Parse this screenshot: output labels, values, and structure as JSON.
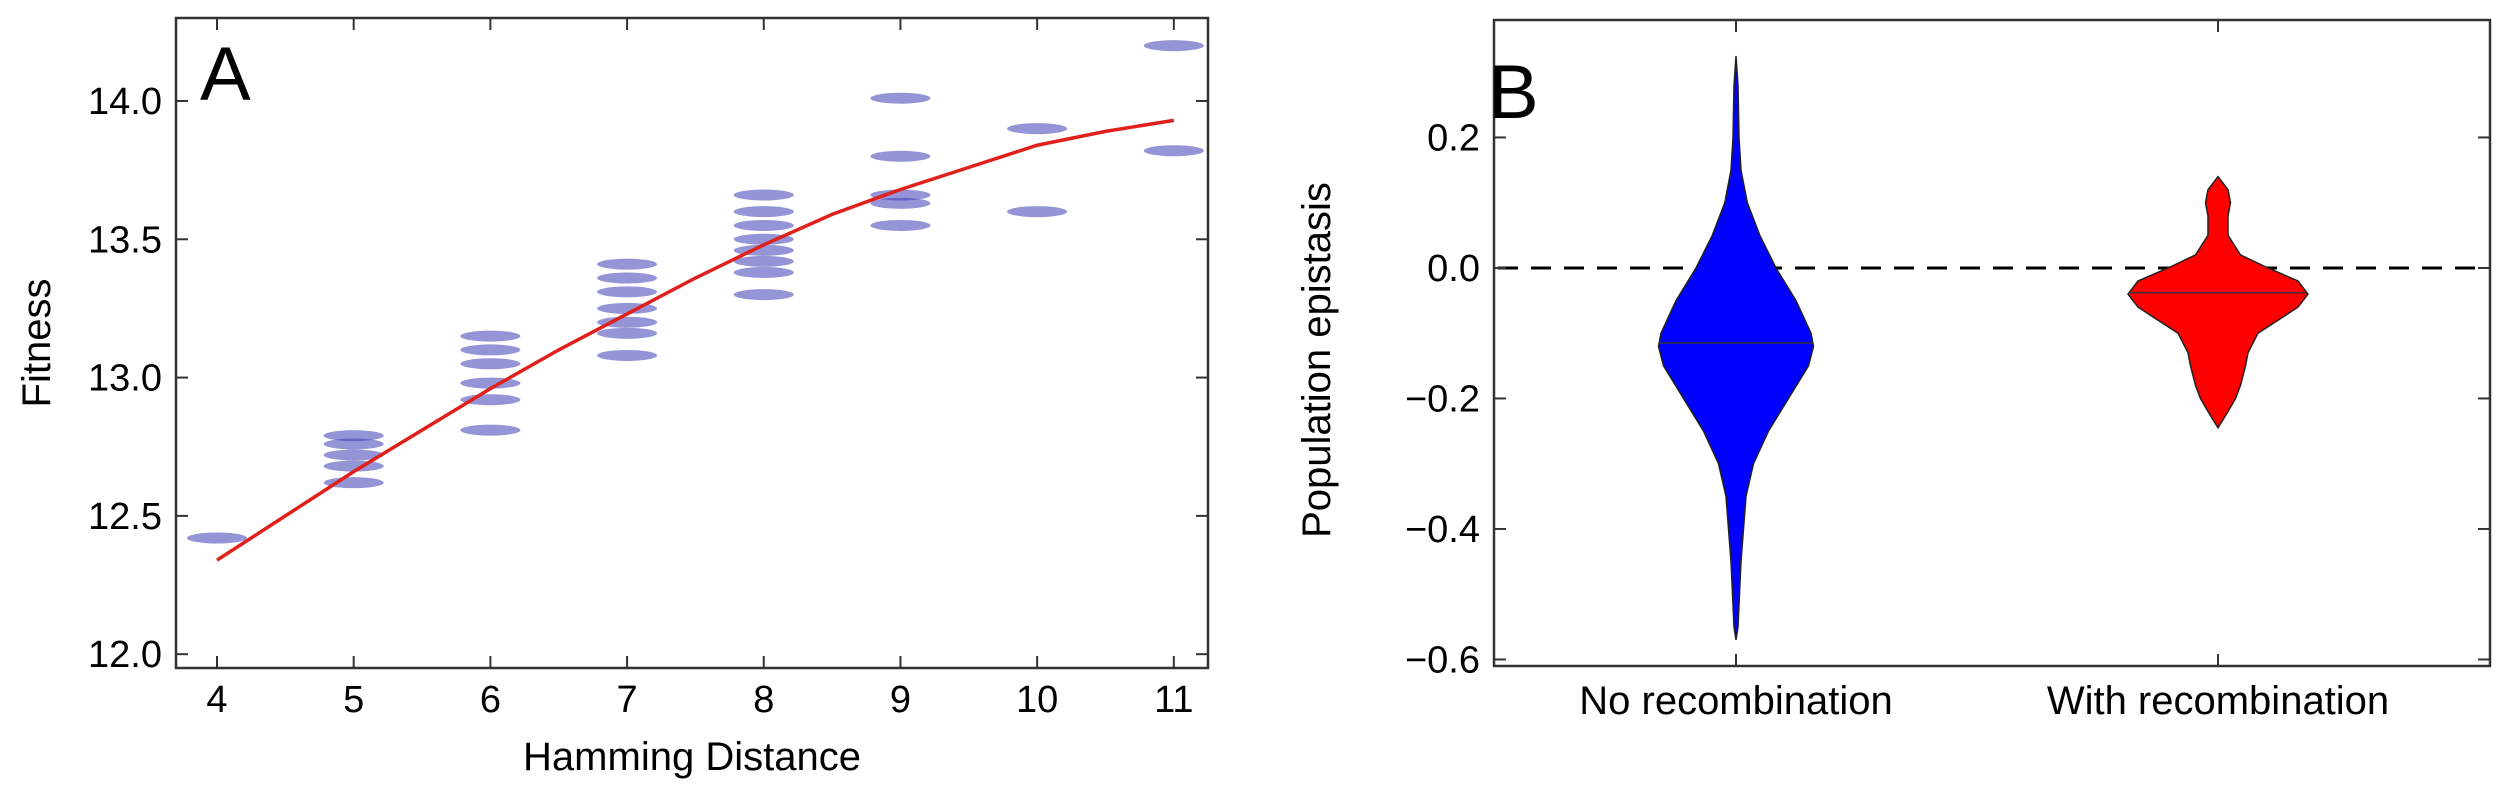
{
  "chart_data": [
    {
      "panel": "A",
      "type": "scatter",
      "xlabel": "Hamming Distance",
      "ylabel": "Fitness",
      "xlim": [
        3.7,
        11.25
      ],
      "ylim": [
        11.95,
        14.3
      ],
      "xticks": [
        "4",
        "5",
        "6",
        "7",
        "8",
        "9",
        "10",
        "11"
      ],
      "yticks": [
        "12.0",
        "12.5",
        "13.0",
        "13.5",
        "14.0"
      ],
      "grid": false,
      "point_color": "#3c3cb4",
      "clusters": [
        {
          "x": 4,
          "values": [
            12.42
          ]
        },
        {
          "x": 5,
          "values": [
            12.62,
            12.68,
            12.72,
            12.76,
            12.79
          ]
        },
        {
          "x": 6,
          "values": [
            12.81,
            12.92,
            12.98,
            13.05,
            13.1,
            13.15
          ]
        },
        {
          "x": 7,
          "values": [
            13.08,
            13.16,
            13.2,
            13.25,
            13.31,
            13.36,
            13.41
          ]
        },
        {
          "x": 8,
          "values": [
            13.3,
            13.38,
            13.42,
            13.46,
            13.5,
            13.55,
            13.6,
            13.66
          ]
        },
        {
          "x": 9,
          "values": [
            13.55,
            13.63,
            13.66,
            13.8,
            14.01
          ]
        },
        {
          "x": 10,
          "values": [
            13.6,
            13.9
          ]
        },
        {
          "x": 11,
          "values": [
            13.82,
            14.2
          ]
        }
      ],
      "fit_curve": {
        "name": "",
        "color": "#e0201b",
        "x": [
          4,
          4.5,
          5,
          5.5,
          6,
          6.5,
          7,
          7.5,
          8,
          8.5,
          9,
          9.5,
          10,
          10.5,
          11
        ],
        "y": [
          12.34,
          12.5,
          12.66,
          12.81,
          12.96,
          13.1,
          13.23,
          13.36,
          13.48,
          13.59,
          13.68,
          13.76,
          13.84,
          13.89,
          13.93
        ]
      }
    },
    {
      "panel": "B",
      "type": "violin",
      "ylabel": "Population epistasis",
      "ylim": [
        -0.61,
        0.38
      ],
      "yticks": [
        "0.2",
        "0.0",
        "−0.2",
        "−0.4",
        "−0.6"
      ],
      "categories": [
        "No recombination",
        "With recombination"
      ],
      "reference_line": {
        "y": 0,
        "style": "dashed"
      },
      "series": [
        {
          "name": "No recombination",
          "color": "#0000ff",
          "median": -0.115,
          "profile": [
            [
              0.325,
              0
            ],
            [
              0.28,
              0.008
            ],
            [
              0.2,
              0.012
            ],
            [
              0.15,
              0.02
            ],
            [
              0.1,
              0.045
            ],
            [
              0.05,
              0.095
            ],
            [
              0.0,
              0.16
            ],
            [
              -0.05,
              0.24
            ],
            [
              -0.1,
              0.3
            ],
            [
              -0.12,
              0.31
            ],
            [
              -0.15,
              0.29
            ],
            [
              -0.2,
              0.21
            ],
            [
              -0.25,
              0.13
            ],
            [
              -0.3,
              0.07
            ],
            [
              -0.35,
              0.04
            ],
            [
              -0.4,
              0.03
            ],
            [
              -0.45,
              0.02
            ],
            [
              -0.5,
              0.014
            ],
            [
              -0.55,
              0.008
            ],
            [
              -0.57,
              0
            ]
          ]
        },
        {
          "name": "With recombination",
          "color": "#ff0000",
          "median": -0.038,
          "profile": [
            [
              0.14,
              0
            ],
            [
              0.12,
              0.04
            ],
            [
              0.1,
              0.05
            ],
            [
              0.08,
              0.04
            ],
            [
              0.05,
              0.04
            ],
            [
              0.02,
              0.09
            ],
            [
              0.0,
              0.2
            ],
            [
              -0.02,
              0.32
            ],
            [
              -0.04,
              0.36
            ],
            [
              -0.06,
              0.32
            ],
            [
              -0.08,
              0.24
            ],
            [
              -0.1,
              0.16
            ],
            [
              -0.13,
              0.12
            ],
            [
              -0.15,
              0.11
            ],
            [
              -0.18,
              0.09
            ],
            [
              -0.2,
              0.07
            ],
            [
              -0.22,
              0.04
            ],
            [
              -0.245,
              0
            ]
          ]
        }
      ]
    }
  ],
  "labels": {
    "panel_a": "A",
    "panel_b": "B"
  }
}
